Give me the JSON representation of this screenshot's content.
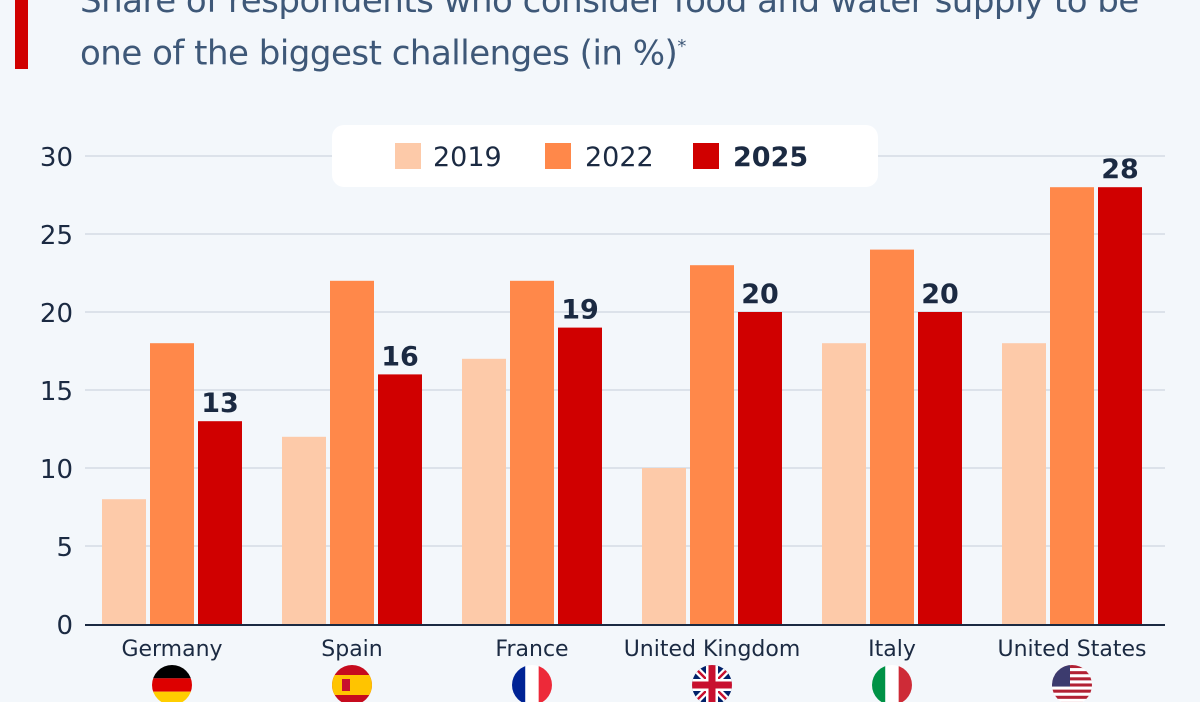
{
  "colors": {
    "accent": "#d00000",
    "s2019": "#fdcaa9",
    "s2022": "#ff884a",
    "s2025": "#d00000",
    "grid": "#c4cdd8",
    "text": "#1b2a42",
    "title": "#3e5878"
  },
  "chart_data": {
    "type": "bar",
    "title": "Share of respondents who consider food and water supply to be one of the biggest challenges (in %)",
    "title_footnote_mark": "*",
    "xlabel": "",
    "ylabel": "",
    "ylim": [
      0,
      30
    ],
    "yticks": [
      0,
      5,
      10,
      15,
      20,
      25,
      30
    ],
    "grid": true,
    "legend_position": "top-center",
    "categories": [
      "Germany",
      "Spain",
      "France",
      "United Kingdom",
      "Italy",
      "United States"
    ],
    "flags": [
      "germany-flag",
      "spain-flag",
      "france-flag",
      "uk-flag",
      "italy-flag",
      "usa-flag"
    ],
    "series": [
      {
        "name": "2019",
        "values": [
          8,
          12,
          17,
          10,
          18,
          18
        ]
      },
      {
        "name": "2022",
        "values": [
          18,
          22,
          22,
          23,
          24,
          28
        ]
      },
      {
        "name": "2025",
        "values": [
          13,
          16,
          19,
          20,
          20,
          28
        ],
        "data_labels": true
      }
    ]
  }
}
